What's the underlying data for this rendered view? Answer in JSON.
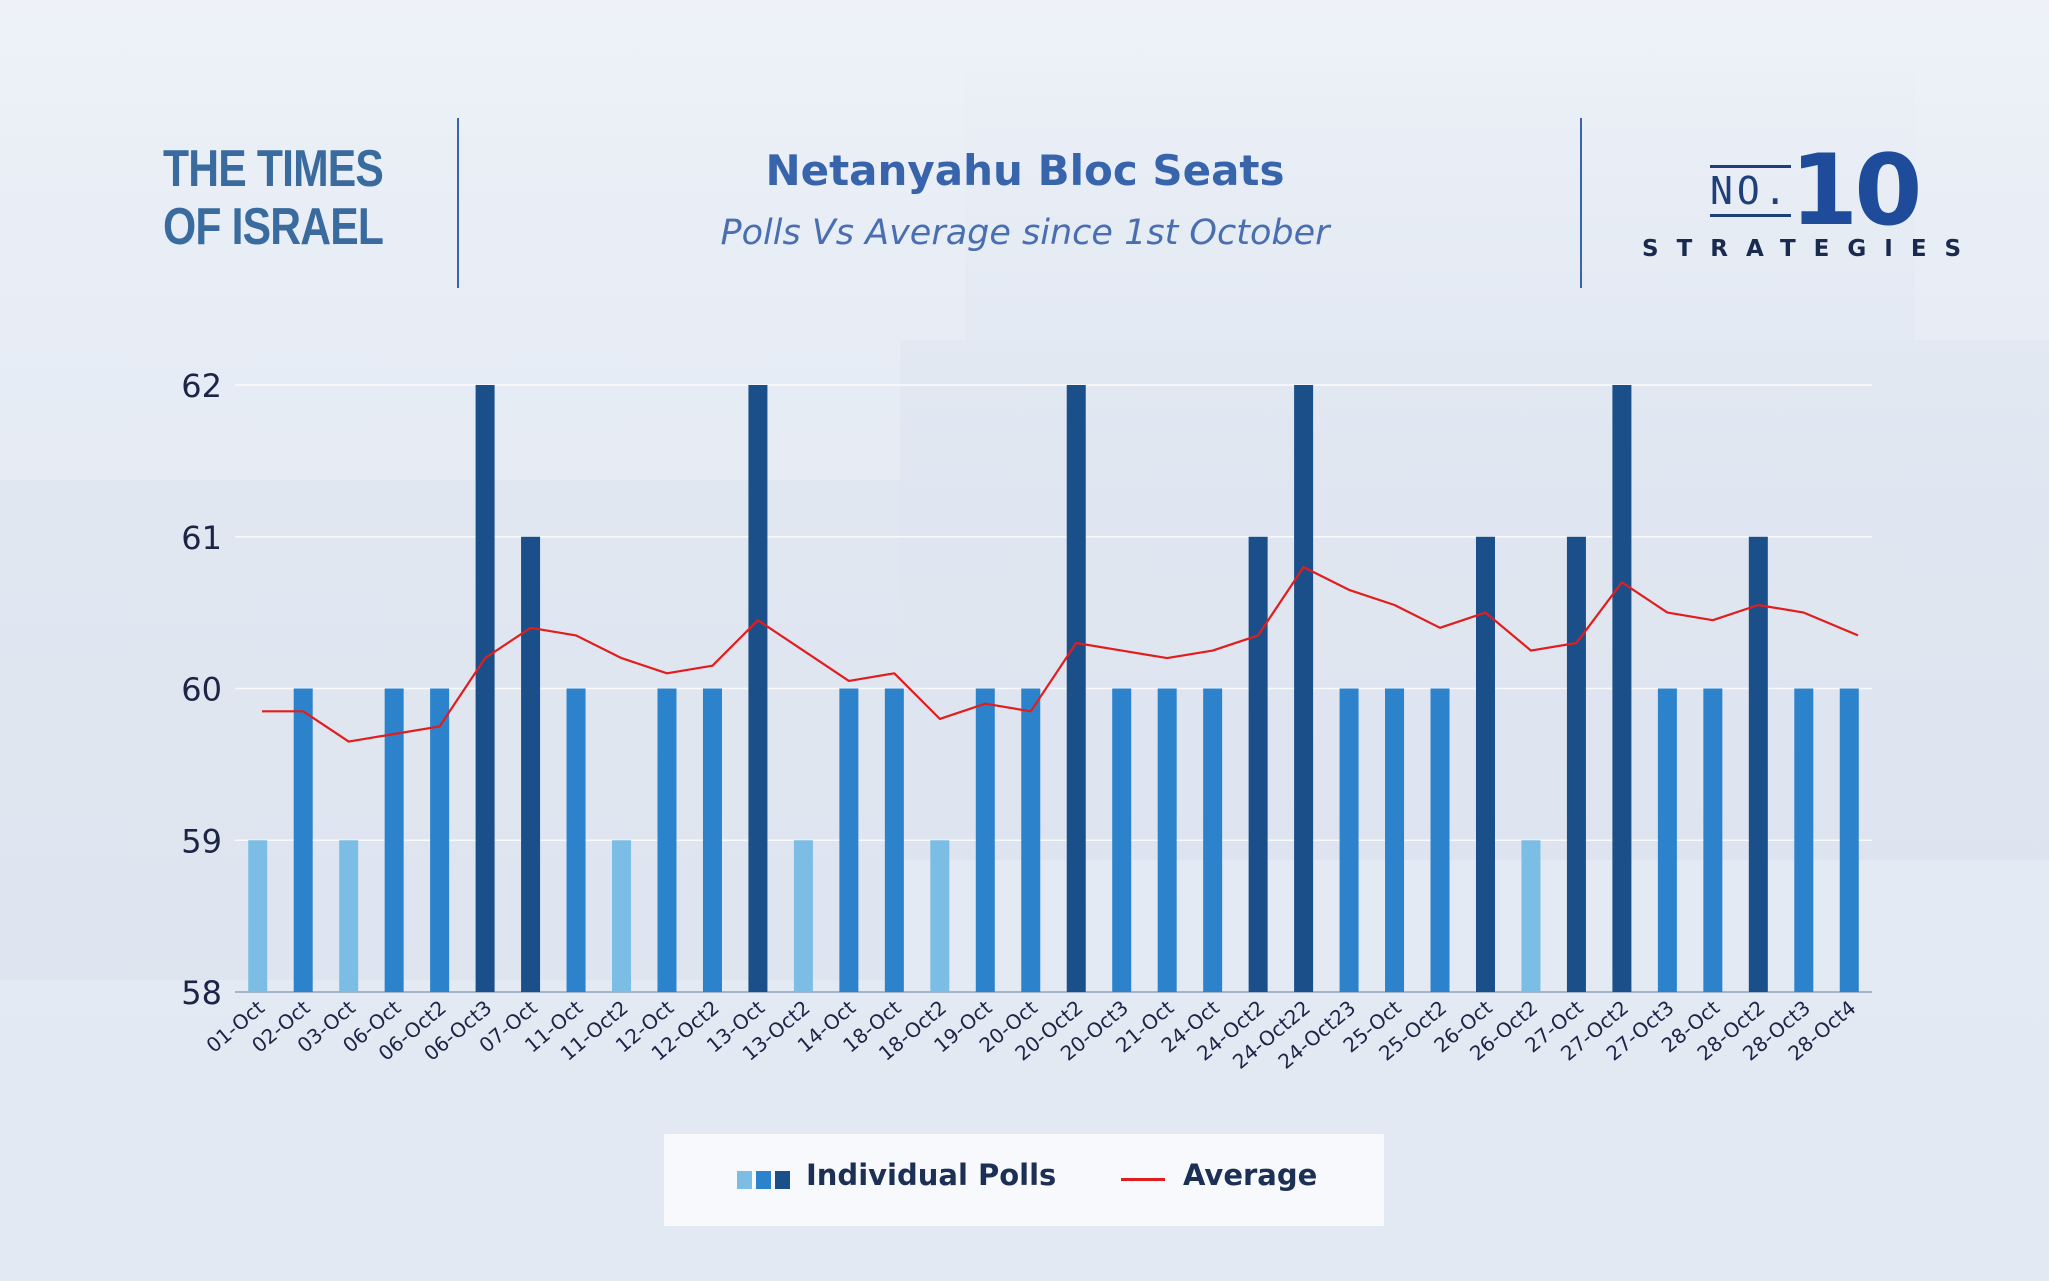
{
  "header": {
    "logo_left": {
      "line1": "THE TIMES",
      "line2": "OF ISRAEL"
    },
    "title": "Netanyahu Bloc Seats",
    "subtitle": "Polls Vs Average since 1st October",
    "logo_right": {
      "no": "NO.",
      "number": "10",
      "word": "STRATEGIES"
    }
  },
  "colors": {
    "light_bar": "#7cbde6",
    "mid_bar": "#2c83cc",
    "dark_bar": "#1b4f8a",
    "average_line": "#e11d1d",
    "axis_text": "#1c2545"
  },
  "chart_data": {
    "type": "bar",
    "title": "Netanyahu Bloc Seats",
    "subtitle": "Polls Vs Average since 1st October",
    "categories": [
      "01-Oct",
      "02-Oct",
      "03-Oct",
      "06-Oct",
      "06-Oct2",
      "06-Oct3",
      "07-Oct",
      "11-Oct",
      "11-Oct2",
      "12-Oct",
      "12-Oct2",
      "13-Oct",
      "13-Oct2",
      "14-Oct",
      "18-Oct",
      "18-Oct2",
      "19-Oct",
      "20-Oct",
      "20-Oct2",
      "20-Oct3",
      "21-Oct",
      "24-Oct",
      "24-Oct2",
      "24-Oct22",
      "24-Oct23",
      "25-Oct",
      "25-Oct2",
      "26-Oct",
      "26-Oct2",
      "27-Oct",
      "27-Oct2",
      "27-Oct3",
      "28-Oct",
      "28-Oct2",
      "28-Oct3",
      "28-Oct4"
    ],
    "series": [
      {
        "name": "Individual Polls",
        "type": "bar",
        "values": [
          59,
          60,
          59,
          60,
          60,
          62,
          61,
          60,
          59,
          60,
          60,
          62,
          59,
          60,
          60,
          59,
          60,
          60,
          62,
          60,
          60,
          60,
          61,
          62,
          60,
          60,
          60,
          61,
          59,
          61,
          62,
          60,
          60,
          61,
          60,
          60
        ]
      },
      {
        "name": "Average",
        "type": "line",
        "values": [
          59.85,
          59.85,
          59.65,
          59.7,
          59.75,
          60.2,
          60.4,
          60.35,
          60.2,
          60.1,
          60.15,
          60.45,
          60.25,
          60.05,
          60.1,
          59.8,
          59.9,
          59.85,
          60.3,
          60.25,
          60.2,
          60.25,
          60.35,
          60.8,
          60.65,
          60.55,
          60.4,
          60.5,
          60.25,
          60.3,
          60.7,
          60.5,
          60.45,
          60.55,
          60.5,
          60.35
        ]
      }
    ],
    "ylim": [
      58,
      62
    ],
    "yticks": [
      58,
      59,
      60,
      61,
      62
    ],
    "grid": true,
    "legend": {
      "position": "bottom",
      "items": [
        "Individual Polls",
        "Average"
      ]
    }
  }
}
